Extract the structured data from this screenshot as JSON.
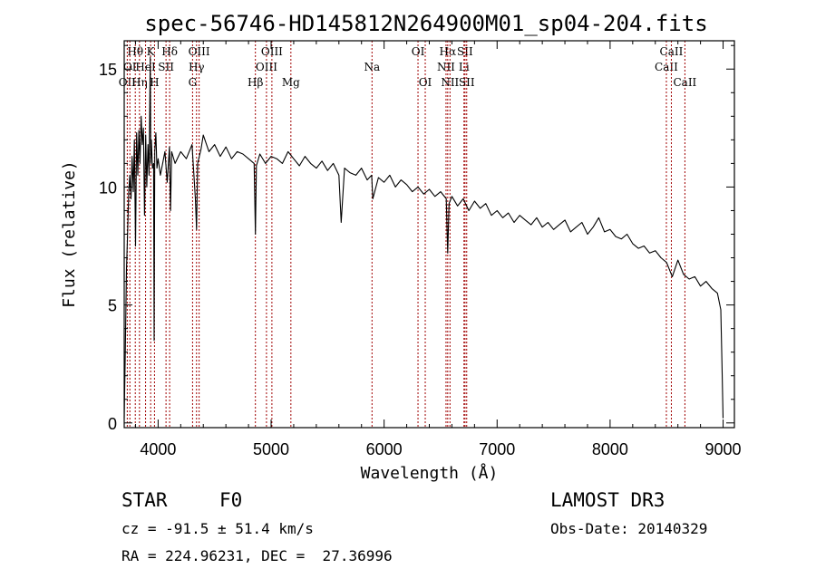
{
  "chart_data": {
    "type": "line",
    "title": "spec-56746-HD145812N264900M01_sp04-204.fits",
    "xlabel": "Wavelength (Å)",
    "ylabel": "Flux (relative)",
    "xlim": [
      3700,
      9100
    ],
    "ylim": [
      -0.2,
      16.2
    ],
    "x_ticks": [
      4000,
      5000,
      6000,
      7000,
      8000,
      9000
    ],
    "x_tick_labels": [
      "4000",
      "5000",
      "6000",
      "7000",
      "8000",
      "9000"
    ],
    "y_ticks": [
      0,
      5,
      10,
      15
    ],
    "y_tick_labels": [
      "0",
      "5",
      "10",
      "15"
    ],
    "series": [
      {
        "name": "spectrum",
        "x": [
          3700,
          3710,
          3720,
          3730,
          3740,
          3750,
          3760,
          3770,
          3780,
          3790,
          3800,
          3810,
          3820,
          3830,
          3840,
          3850,
          3860,
          3870,
          3880,
          3890,
          3900,
          3910,
          3920,
          3930,
          3935,
          3940,
          3950,
          3960,
          3965,
          3970,
          3980,
          3990,
          4000,
          4020,
          4040,
          4060,
          4080,
          4100,
          4110,
          4120,
          4150,
          4200,
          4250,
          4300,
          4330,
          4340,
          4350,
          4380,
          4400,
          4450,
          4500,
          4550,
          4600,
          4650,
          4700,
          4750,
          4800,
          4850,
          4861,
          4870,
          4900,
          4950,
          5000,
          5050,
          5100,
          5150,
          5200,
          5250,
          5300,
          5350,
          5400,
          5450,
          5500,
          5550,
          5600,
          5620,
          5650,
          5700,
          5750,
          5800,
          5850,
          5890,
          5900,
          5950,
          6000,
          6050,
          6100,
          6150,
          6200,
          6250,
          6300,
          6350,
          6400,
          6450,
          6500,
          6550,
          6563,
          6575,
          6600,
          6650,
          6700,
          6750,
          6800,
          6850,
          6900,
          6950,
          7000,
          7050,
          7100,
          7150,
          7200,
          7250,
          7300,
          7350,
          7400,
          7450,
          7500,
          7550,
          7600,
          7650,
          7700,
          7750,
          7800,
          7850,
          7900,
          7950,
          8000,
          8050,
          8100,
          8150,
          8200,
          8250,
          8300,
          8350,
          8400,
          8450,
          8500,
          8550,
          8600,
          8650,
          8700,
          8750,
          8800,
          8850,
          8900,
          8950,
          8980,
          8990,
          9000
        ],
        "y": [
          0.2,
          3.0,
          6.5,
          8.0,
          9.8,
          10.5,
          9.5,
          11.3,
          9.8,
          12.0,
          7.5,
          12.3,
          10.5,
          12.4,
          11.0,
          13.0,
          11.8,
          12.5,
          8.8,
          12.2,
          10.0,
          11.8,
          10.5,
          15.5,
          11.0,
          12.0,
          10.8,
          11.0,
          3.5,
          11.5,
          12.3,
          10.8,
          11.2,
          10.5,
          11.0,
          11.5,
          10.2,
          11.7,
          9.0,
          11.5,
          11.0,
          11.5,
          11.2,
          11.8,
          9.5,
          8.2,
          11.0,
          11.6,
          12.2,
          11.5,
          11.8,
          11.3,
          11.7,
          11.2,
          11.5,
          11.4,
          11.2,
          11.0,
          8.0,
          10.9,
          11.4,
          11.0,
          11.3,
          11.2,
          11.0,
          11.5,
          11.2,
          10.9,
          11.3,
          11.0,
          10.8,
          11.1,
          10.7,
          11.0,
          10.5,
          8.5,
          10.8,
          10.6,
          10.5,
          10.8,
          10.3,
          10.5,
          9.5,
          10.4,
          10.2,
          10.5,
          10.0,
          10.3,
          10.1,
          9.8,
          10.0,
          9.7,
          9.9,
          9.6,
          9.8,
          9.5,
          7.2,
          9.3,
          9.6,
          9.2,
          9.5,
          9.0,
          9.4,
          9.1,
          9.3,
          8.8,
          9.0,
          8.7,
          8.9,
          8.5,
          8.8,
          8.6,
          8.4,
          8.7,
          8.3,
          8.5,
          8.2,
          8.4,
          8.6,
          8.1,
          8.3,
          8.5,
          8.0,
          8.3,
          8.7,
          8.1,
          8.2,
          7.9,
          7.8,
          8.0,
          7.6,
          7.4,
          7.5,
          7.2,
          7.3,
          7.0,
          6.8,
          6.2,
          6.9,
          6.3,
          6.1,
          6.2,
          5.8,
          6.0,
          5.7,
          5.5,
          4.8,
          2.5,
          0.2
        ]
      }
    ],
    "line_markers": [
      {
        "label": "OII",
        "x": 3727,
        "row": 3
      },
      {
        "label": "Hθ",
        "x": 3798,
        "row": 1
      },
      {
        "label": "OI",
        "x": 3750,
        "row": 2
      },
      {
        "label": "Hη",
        "x": 3835,
        "row": 3
      },
      {
        "label": "HeI",
        "x": 3889,
        "row": 2
      },
      {
        "label": "K",
        "x": 3934,
        "row": 1
      },
      {
        "label": "H",
        "x": 3968,
        "row": 3
      },
      {
        "label": "SII",
        "x": 4070,
        "row": 2
      },
      {
        "label": "Hδ",
        "x": 4102,
        "row": 1
      },
      {
        "label": "G",
        "x": 4305,
        "row": 3
      },
      {
        "label": "Hγ",
        "x": 4340,
        "row": 2
      },
      {
        "label": "OIII",
        "x": 4363,
        "row": 1
      },
      {
        "label": "Hβ",
        "x": 4861,
        "row": 3
      },
      {
        "label": "OIII",
        "x": 4959,
        "row": 2
      },
      {
        "label": "OIII",
        "x": 5007,
        "row": 1
      },
      {
        "label": "Mg",
        "x": 5175,
        "row": 3
      },
      {
        "label": "Na",
        "x": 5893,
        "row": 2
      },
      {
        "label": "OI",
        "x": 6300,
        "row": 1
      },
      {
        "label": "OI",
        "x": 6364,
        "row": 3
      },
      {
        "label": "NII",
        "x": 6548,
        "row": 2
      },
      {
        "label": "Hα",
        "x": 6563,
        "row": 1
      },
      {
        "label": "NII",
        "x": 6583,
        "row": 3
      },
      {
        "label": "Li",
        "x": 6707,
        "row": 2
      },
      {
        "label": "SII",
        "x": 6716,
        "row": 1
      },
      {
        "label": "SII",
        "x": 6731,
        "row": 3
      },
      {
        "label": "CaII",
        "x": 8498,
        "row": 2
      },
      {
        "label": "CaII",
        "x": 8542,
        "row": 1
      },
      {
        "label": "CaII",
        "x": 8662,
        "row": 3
      }
    ]
  },
  "info": {
    "class": "STAR",
    "subclass": "F0",
    "survey": "LAMOST DR3",
    "cz": "cz = -91.5 ± 51.4 km/s",
    "obs_date": "Obs-Date: 20140329",
    "radec": "RA = 224.96231, DEC =  27.36996"
  },
  "colors": {
    "line": "#000000",
    "marker": "#a00000",
    "background": "#ffffff"
  }
}
